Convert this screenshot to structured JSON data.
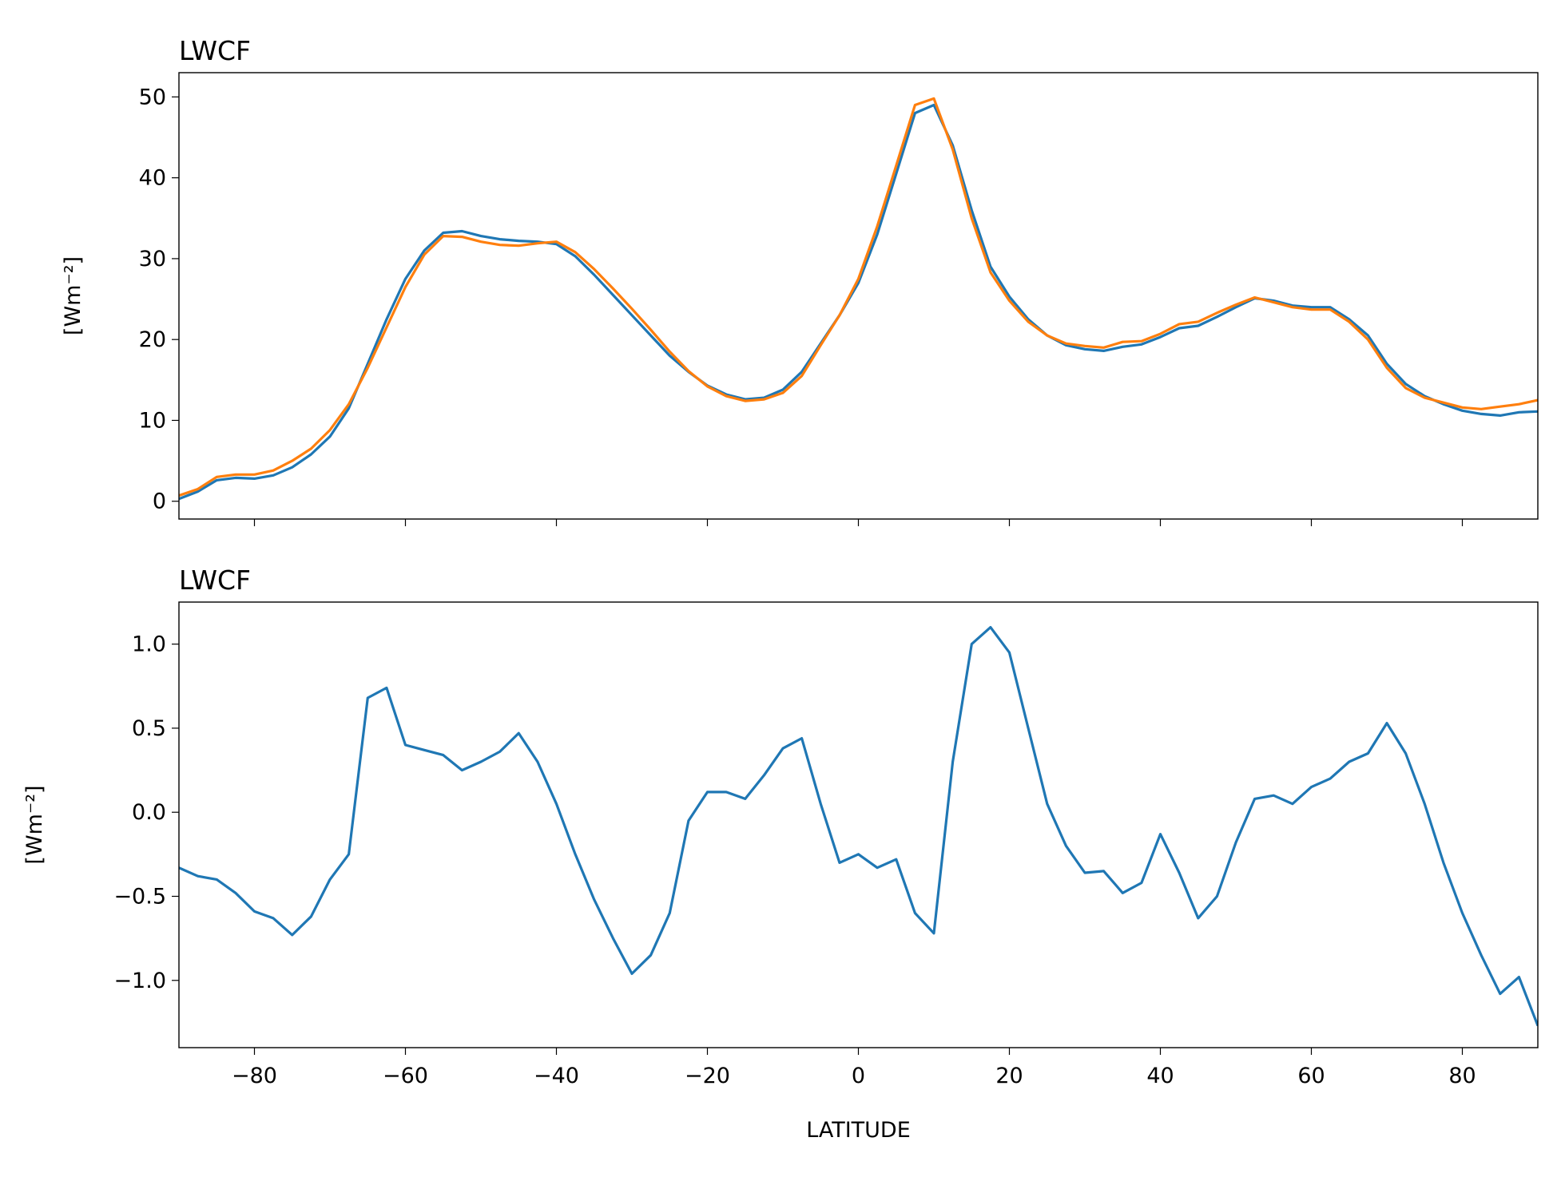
{
  "chart_data": [
    {
      "type": "line",
      "title": "LWCF",
      "ylabel": "[Wm⁻²]",
      "x": [
        -90,
        -87.5,
        -85,
        -82.5,
        -80,
        -77.5,
        -75,
        -72.5,
        -70,
        -67.5,
        -65,
        -62.5,
        -60,
        -57.5,
        -55,
        -52.5,
        -50,
        -47.5,
        -45,
        -42.5,
        -40,
        -37.5,
        -35,
        -32.5,
        -30,
        -27.5,
        -25,
        -22.5,
        -20,
        -17.5,
        -15,
        -12.5,
        -10,
        -7.5,
        -5,
        -2.5,
        0,
        2.5,
        5,
        7.5,
        10,
        12.5,
        15,
        17.5,
        20,
        22.5,
        25,
        27.5,
        30,
        32.5,
        35,
        37.5,
        40,
        42.5,
        45,
        47.5,
        50,
        52.5,
        55,
        57.5,
        60,
        62.5,
        65,
        67.5,
        70,
        72.5,
        75,
        77.5,
        80,
        82.5,
        85,
        87.5,
        90
      ],
      "series": [
        {
          "color": "#1f77b4",
          "values": [
            0.3,
            1.2,
            2.6,
            2.9,
            2.8,
            3.2,
            4.2,
            5.8,
            8,
            11.5,
            17,
            22.5,
            27.5,
            31,
            33.2,
            33.4,
            32.8,
            32.4,
            32.2,
            32.1,
            31.8,
            30.3,
            28,
            25.5,
            23,
            20.5,
            18,
            16,
            14.3,
            13.2,
            12.6,
            12.8,
            13.8,
            16,
            19.5,
            23,
            27,
            33,
            40.5,
            48,
            49,
            44,
            36,
            29,
            25.3,
            22.5,
            20.5,
            19.3,
            18.8,
            18.6,
            19.1,
            19.4,
            20.3,
            21.4,
            21.7,
            22.8,
            24,
            25.1,
            24.8,
            24.2,
            24.0,
            24.0,
            22.5,
            20.5,
            17,
            14.5,
            13,
            12,
            11.2,
            10.8,
            10.6,
            11,
            11.1
          ]
        },
        {
          "color": "#ff7f0e",
          "values": [
            0.7,
            1.5,
            3.0,
            3.3,
            3.3,
            3.8,
            5,
            6.5,
            8.8,
            12,
            16.5,
            21.5,
            26.5,
            30.5,
            32.8,
            32.7,
            32.1,
            31.7,
            31.6,
            31.9,
            32.1,
            30.8,
            28.7,
            26.3,
            23.8,
            21.2,
            18.5,
            16.1,
            14.2,
            13,
            12.4,
            12.6,
            13.4,
            15.5,
            19.3,
            23,
            27.5,
            34,
            41.5,
            49,
            49.8,
            43.5,
            35,
            28.3,
            24.8,
            22.2,
            20.5,
            19.5,
            19.2,
            19,
            19.7,
            19.8,
            20.7,
            21.9,
            22.2,
            23.3,
            24.3,
            25.2,
            24.6,
            24.0,
            23.7,
            23.7,
            22.2,
            20.0,
            16.5,
            14,
            12.8,
            12.2,
            11.6,
            11.4,
            11.7,
            12,
            12.5
          ]
        }
      ],
      "xlim": [
        -90,
        90
      ],
      "ylim": [
        -2.2,
        53
      ],
      "xticks": [
        -80,
        -60,
        -40,
        -20,
        0,
        20,
        40,
        60,
        80
      ],
      "xtick_labels": false,
      "yticks": [
        0,
        10,
        20,
        30,
        40,
        50
      ]
    },
    {
      "type": "line",
      "title": "LWCF",
      "ylabel": "[Wm⁻²]",
      "xlabel": "LATITUDE",
      "x": [
        -90,
        -87.5,
        -85,
        -82.5,
        -80,
        -77.5,
        -75,
        -72.5,
        -70,
        -67.5,
        -65,
        -62.5,
        -60,
        -57.5,
        -55,
        -52.5,
        -50,
        -47.5,
        -45,
        -42.5,
        -40,
        -37.5,
        -35,
        -32.5,
        -30,
        -27.5,
        -25,
        -22.5,
        -20,
        -17.5,
        -15,
        -12.5,
        -10,
        -7.5,
        -5,
        -2.5,
        0,
        2.5,
        5,
        7.5,
        10,
        12.5,
        15,
        17.5,
        20,
        22.5,
        25,
        27.5,
        30,
        32.5,
        35,
        37.5,
        40,
        42.5,
        45,
        47.5,
        50,
        52.5,
        55,
        57.5,
        60,
        62.5,
        65,
        67.5,
        70,
        72.5,
        75,
        77.5,
        80,
        82.5,
        85,
        87.5,
        90
      ],
      "series": [
        {
          "color": "#1f77b4",
          "values": [
            -0.33,
            -0.38,
            -0.4,
            -0.48,
            -0.59,
            -0.63,
            -0.73,
            -0.62,
            -0.4,
            -0.25,
            0.68,
            0.74,
            0.4,
            0.37,
            0.34,
            0.25,
            0.3,
            0.36,
            0.47,
            0.3,
            0.05,
            -0.25,
            -0.52,
            -0.75,
            -0.96,
            -0.85,
            -0.6,
            -0.05,
            0.12,
            0.12,
            0.08,
            0.22,
            0.38,
            0.44,
            0.05,
            -0.3,
            -0.25,
            -0.33,
            -0.28,
            -0.6,
            -0.72,
            0.3,
            1.0,
            1.1,
            0.95,
            0.5,
            0.05,
            -0.2,
            -0.36,
            -0.35,
            -0.48,
            -0.42,
            -0.13,
            -0.36,
            -0.63,
            -0.5,
            -0.18,
            0.08,
            0.1,
            0.05,
            0.15,
            0.2,
            0.3,
            0.35,
            0.53,
            0.35,
            0.05,
            -0.3,
            -0.6,
            -0.85,
            -1.08,
            -0.98,
            -1.27
          ]
        }
      ],
      "xlim": [
        -90,
        90
      ],
      "ylim": [
        -1.4,
        1.25
      ],
      "xticks": [
        {
          "value": -80,
          "label": "−80"
        },
        {
          "value": -60,
          "label": "−60"
        },
        {
          "value": -40,
          "label": "−40"
        },
        {
          "value": -20,
          "label": "−20"
        },
        0,
        20,
        40,
        60,
        80
      ],
      "yticks": [
        {
          "value": -1.0,
          "label": "−1.0"
        },
        {
          "value": -0.5,
          "label": "−0.5"
        },
        {
          "value": 0,
          "label": "0.0"
        },
        {
          "value": 0.5,
          "label": "0.5"
        },
        {
          "value": 1.0,
          "label": "1.0"
        }
      ]
    }
  ]
}
